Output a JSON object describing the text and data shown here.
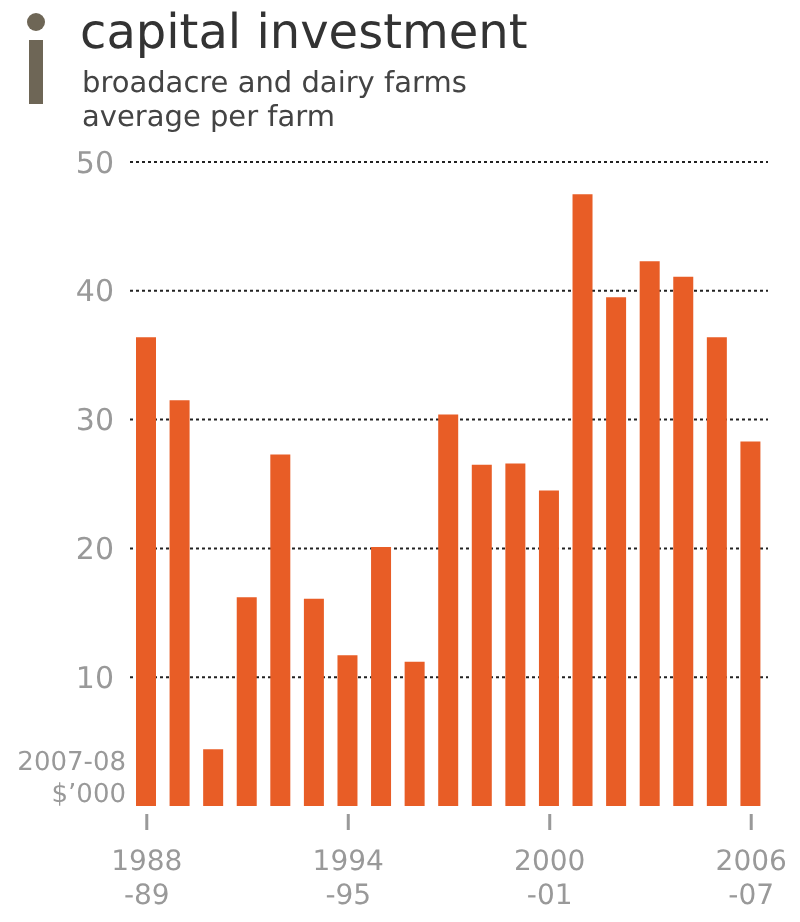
{
  "chart_data": {
    "type": "bar",
    "title": "capital investment",
    "subtitle": "broadacre and dairy farms\naverage per farm",
    "ylabel": "2007-08\n$’000",
    "categories": [
      "1988\n-89",
      null,
      null,
      null,
      null,
      null,
      "1994\n-95",
      null,
      null,
      null,
      null,
      null,
      "2000\n-01",
      null,
      null,
      null,
      null,
      null,
      "2006\n-07"
    ],
    "values": [
      36.4,
      31.5,
      4.4,
      16.2,
      27.3,
      16.1,
      11.7,
      20.1,
      11.2,
      30.4,
      26.5,
      26.6,
      24.5,
      47.5,
      39.5,
      42.3,
      41.1,
      36.4,
      28.3
    ],
    "color": "#e85d26",
    "ylim": [
      0,
      50
    ],
    "yticks": [
      10,
      20,
      30,
      40,
      50
    ],
    "grid": "y"
  }
}
